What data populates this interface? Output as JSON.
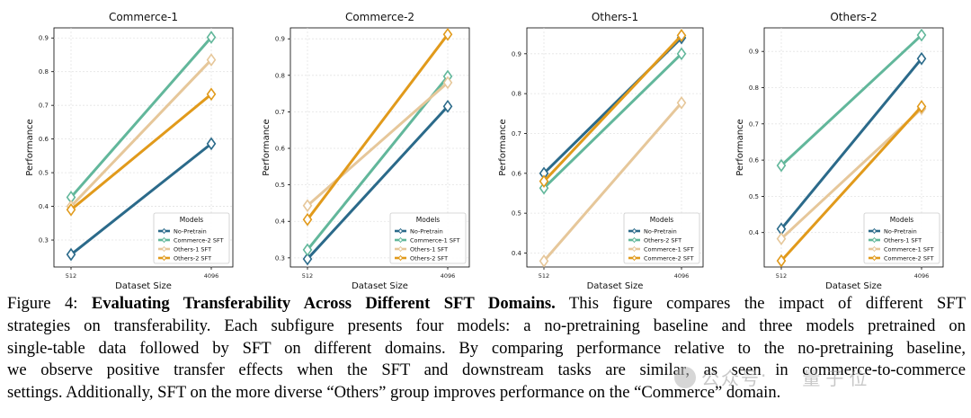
{
  "figure": {
    "xlabel": "Dataset Size",
    "ylabel": "Performance",
    "legend_title": "Models"
  },
  "chart_data": [
    {
      "type": "line",
      "title": "Commerce-1",
      "xlabel": "Dataset Size",
      "ylabel": "Performance",
      "x": [
        "512",
        "4096"
      ],
      "ylim": [
        0.22,
        0.93
      ],
      "yticks": [
        0.3,
        0.4,
        0.5,
        0.6,
        0.7,
        0.8,
        0.9
      ],
      "grid": true,
      "legend_position": "bottom-right",
      "series": [
        {
          "name": "No-Pretrain",
          "values": [
            0.257,
            0.586
          ],
          "color": "#2b6a8a"
        },
        {
          "name": "Commerce-2 SFT",
          "values": [
            0.427,
            0.902
          ],
          "color": "#62b79b"
        },
        {
          "name": "Others-1 SFT",
          "values": [
            0.4,
            0.835
          ],
          "color": "#e6c79a"
        },
        {
          "name": "Others-2 SFT",
          "values": [
            0.39,
            0.733
          ],
          "color": "#e19a1b"
        }
      ]
    },
    {
      "type": "line",
      "title": "Commerce-2",
      "xlabel": "Dataset Size",
      "ylabel": "Performance",
      "x": [
        "512",
        "4096"
      ],
      "ylim": [
        0.275,
        0.93
      ],
      "yticks": [
        0.3,
        0.4,
        0.5,
        0.6,
        0.7,
        0.8,
        0.9
      ],
      "grid": true,
      "legend_position": "bottom-right",
      "series": [
        {
          "name": "No-Pretrain",
          "values": [
            0.297,
            0.715
          ],
          "color": "#2b6a8a"
        },
        {
          "name": "Commerce-1 SFT",
          "values": [
            0.322,
            0.797
          ],
          "color": "#62b79b"
        },
        {
          "name": "Others-1 SFT",
          "values": [
            0.443,
            0.78
          ],
          "color": "#e6c79a"
        },
        {
          "name": "Others-2 SFT",
          "values": [
            0.405,
            0.912
          ],
          "color": "#e19a1b"
        }
      ]
    },
    {
      "type": "line",
      "title": "Others-1",
      "xlabel": "Dataset Size",
      "ylabel": "Performance",
      "x": [
        "512",
        "4096"
      ],
      "ylim": [
        0.365,
        0.965
      ],
      "yticks": [
        0.4,
        0.5,
        0.6,
        0.7,
        0.8,
        0.9
      ],
      "grid": true,
      "legend_position": "bottom-right",
      "series": [
        {
          "name": "No-Pretrain",
          "values": [
            0.6,
            0.94
          ],
          "color": "#2b6a8a"
        },
        {
          "name": "Others-2 SFT",
          "values": [
            0.563,
            0.9
          ],
          "color": "#62b79b"
        },
        {
          "name": "Commerce-1 SFT",
          "values": [
            0.38,
            0.777
          ],
          "color": "#e6c79a"
        },
        {
          "name": "Commerce-2 SFT",
          "values": [
            0.58,
            0.946
          ],
          "color": "#e19a1b"
        }
      ]
    },
    {
      "type": "line",
      "title": "Others-2",
      "xlabel": "Dataset Size",
      "ylabel": "Performance",
      "x": [
        "512",
        "4096"
      ],
      "ylim": [
        0.305,
        0.965
      ],
      "yticks": [
        0.4,
        0.5,
        0.6,
        0.7,
        0.8,
        0.9
      ],
      "grid": true,
      "legend_position": "bottom-right",
      "series": [
        {
          "name": "No-Pretrain",
          "values": [
            0.41,
            0.88
          ],
          "color": "#2b6a8a"
        },
        {
          "name": "Others-1 SFT",
          "values": [
            0.585,
            0.945
          ],
          "color": "#62b79b"
        },
        {
          "name": "Commerce-1 SFT",
          "values": [
            0.383,
            0.742
          ],
          "color": "#e6c79a"
        },
        {
          "name": "Commerce-2 SFT",
          "values": [
            0.322,
            0.748
          ],
          "color": "#e19a1b"
        }
      ]
    }
  ],
  "caption": {
    "label": "Figure 4:",
    "bold_title": "Evaluating Transferability Across Different SFT Domains.",
    "line1_rest": "This figure compares the impact of different SFT",
    "line2": "strategies on transferability. Each subfigure presents four models: a no-pretraining baseline and three models pretrained on",
    "line3": "single-table data followed by SFT on different domains. By comparing performance relative to the no-pretraining baseline,",
    "line4": "we observe positive transfer effects when the SFT and downstream tasks are similar, as seen in commerce-to-commerce",
    "line5": "settings. Additionally, SFT on the more diverse “Others” group improves performance on the “Commerce” domain."
  },
  "watermark": {
    "text1": "公众号",
    "separator": "·",
    "text2": "量子位"
  }
}
